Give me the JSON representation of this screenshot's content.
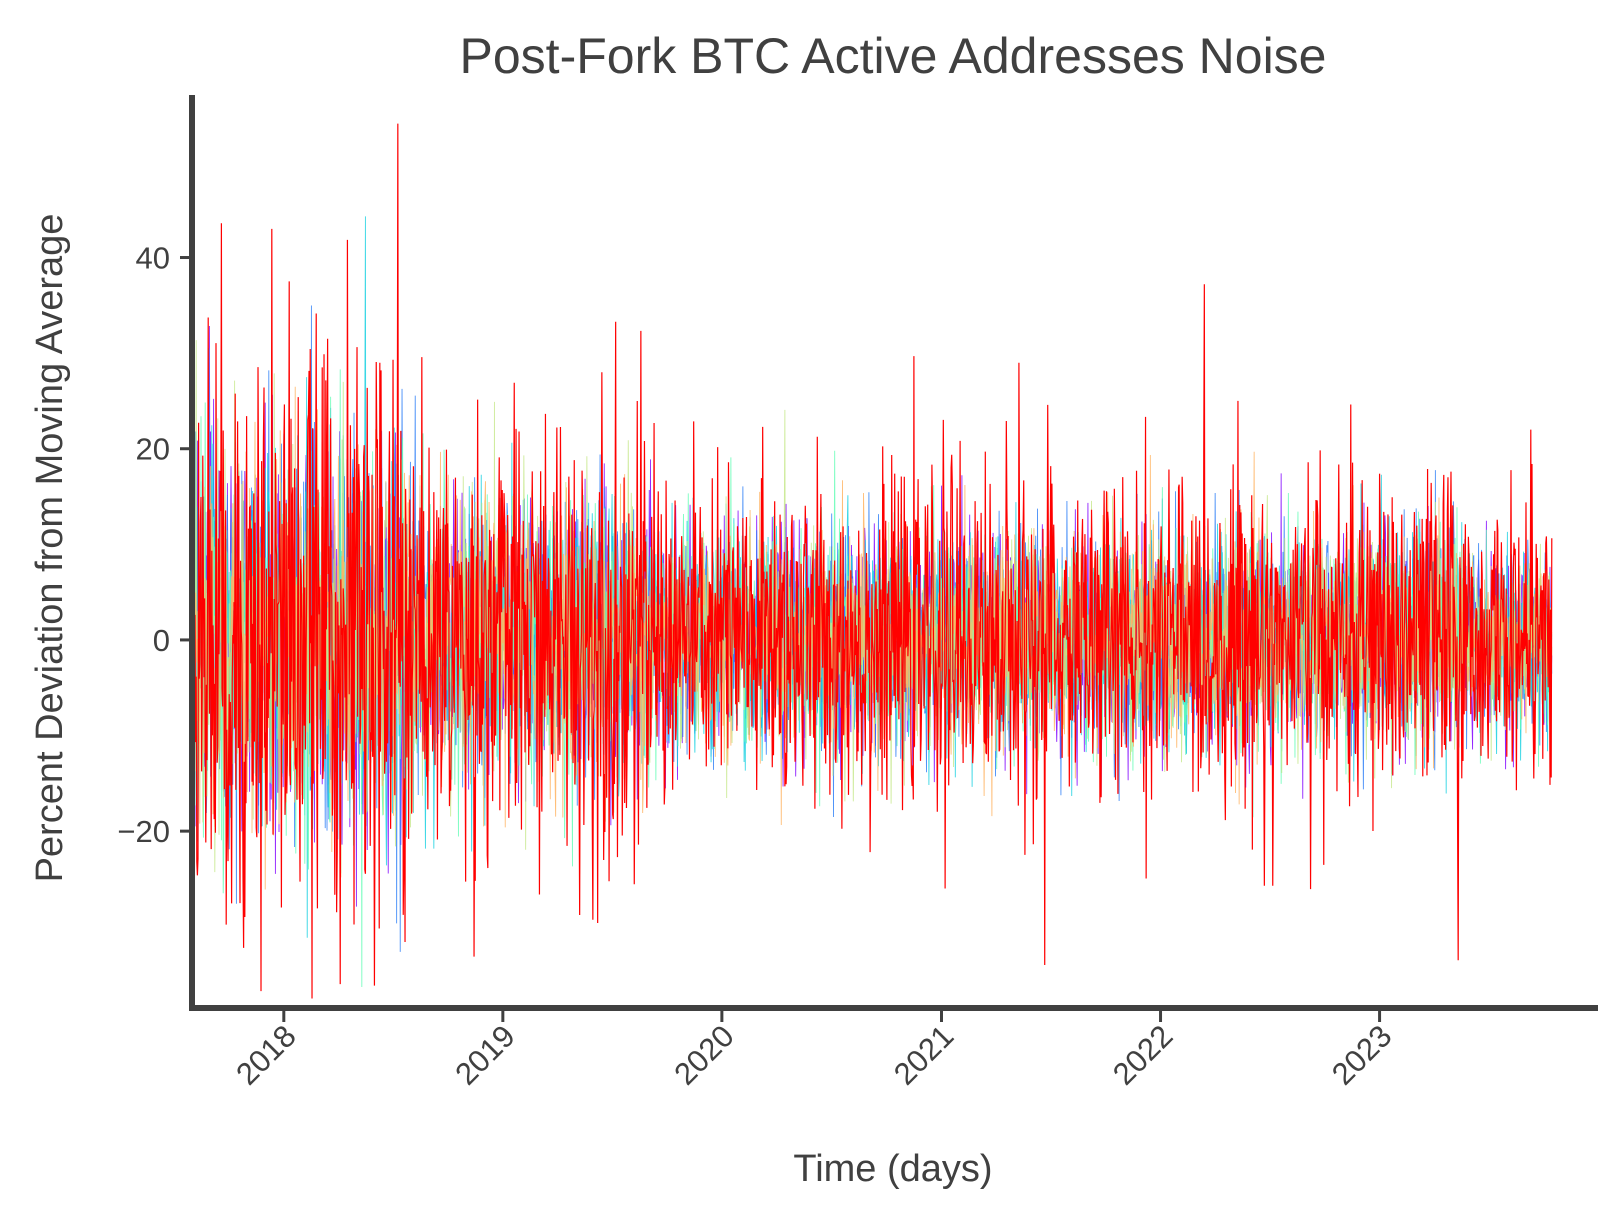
{
  "chart_data": {
    "type": "line",
    "title": "Post-Fork BTC Active Addresses Noise",
    "xlabel": "Time (days)",
    "ylabel": "Percent Deviation from Moving Average",
    "xlim": [
      "2017-08-01",
      "2023-12-31"
    ],
    "ylim": [
      -38.5,
      57
    ],
    "x_ticks": [
      "2018",
      "2019",
      "2020",
      "2021",
      "2022",
      "2023"
    ],
    "y_ticks": [
      -20,
      0,
      20,
      40
    ],
    "grid": false,
    "legend": "none",
    "line_colors": [
      "#8000ff",
      "#2c7ef7",
      "#16d0e0",
      "#64fdb6",
      "#c6e88a",
      "#ffb360",
      "#ff0000"
    ],
    "x_range_data": [
      "2017-08-01",
      "2023-10-15"
    ],
    "series_summary": {
      "description_values": [
        {
          "x": "2017-12-12",
          "y": 43
        },
        {
          "x": "2018-01-10",
          "y": 37.5
        },
        {
          "x": "2018-03-15",
          "y": 31.5
        },
        {
          "x": "2018-04-05",
          "y": -36
        },
        {
          "x": "2018-07-10",
          "y": 54
        },
        {
          "x": "2019-06-15",
          "y": 28
        },
        {
          "x": "2021-05-10",
          "y": 29
        },
        {
          "x": "2021-06-22",
          "y": -34
        },
        {
          "x": "2022-05-10",
          "y": 25
        },
        {
          "x": "2023-05-12",
          "y": -33.5
        },
        {
          "x": "2023-09-10",
          "y": 22
        }
      ]
    }
  }
}
